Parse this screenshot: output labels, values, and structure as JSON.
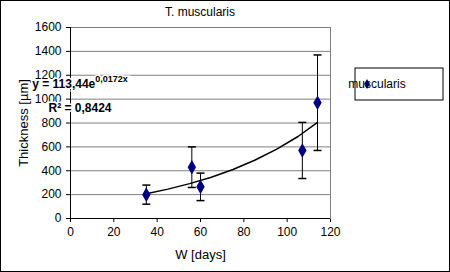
{
  "chart_data": {
    "type": "scatter",
    "title": "T. muscularis",
    "x_label": "W [days]",
    "y_label": "Thickness [µm]",
    "series": [
      {
        "name": "muscularis",
        "color": "#000080",
        "marker": "diamond",
        "x": [
          35,
          56,
          60,
          107,
          114
        ],
        "values": [
          200,
          430,
          265,
          570,
          970
        ],
        "errors": [
          80,
          170,
          115,
          235,
          400
        ]
      }
    ],
    "trendline": {
      "color": "#000000",
      "x": [
        35,
        45,
        55,
        65,
        75,
        85,
        95,
        105,
        114
      ],
      "values": [
        207,
        246,
        292,
        346,
        411,
        488,
        579,
        687,
        805
      ]
    },
    "annotations": [
      {
        "text": "y = 113,44e",
        "exponent": "0,0172x"
      },
      {
        "text": "R² = 0,8424"
      }
    ],
    "xlim": [
      0,
      120
    ],
    "xticks": [
      0,
      20,
      40,
      60,
      80,
      100,
      120
    ],
    "ylim": [
      0,
      1600
    ],
    "yticks": [
      0,
      200,
      400,
      600,
      800,
      1000,
      1200,
      1400,
      1600
    ],
    "grid": true,
    "legend": "right"
  }
}
